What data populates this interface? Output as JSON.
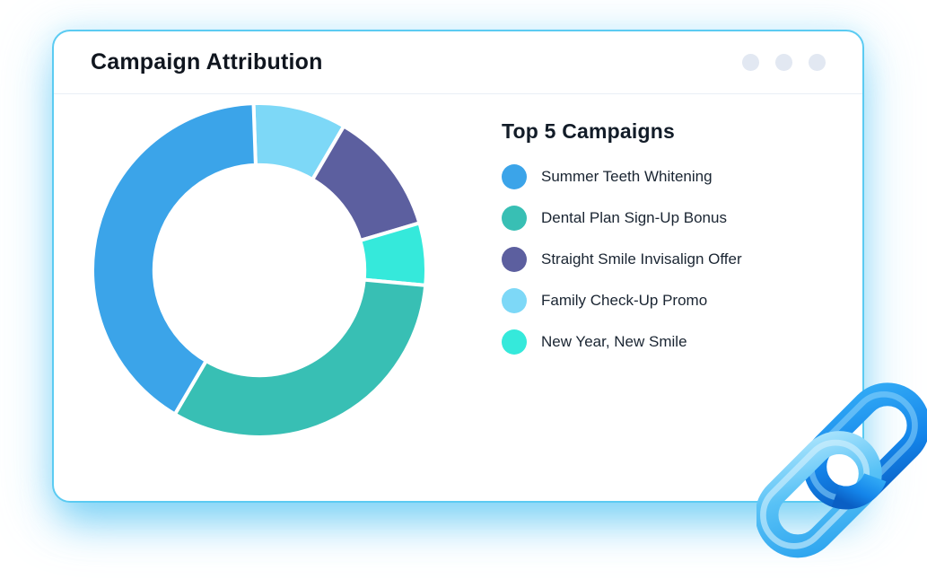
{
  "header": {
    "title": "Campaign Attribution",
    "menu_icon": "ellipsis-dots",
    "menu_dot_count": 3
  },
  "legend": {
    "title": "Top 5 Campaigns",
    "items": [
      {
        "label": "Summer Teeth Whitening",
        "color": "#3BA4E9"
      },
      {
        "label": "Dental Plan Sign-Up Bonus",
        "color": "#38BFB4"
      },
      {
        "label": "Straight Smile Invisalign Offer",
        "color": "#5C5F9F"
      },
      {
        "label": "Family Check-Up Promo",
        "color": "#7DD8F7"
      },
      {
        "label": "New Year, New Smile",
        "color": "#35E9DB"
      }
    ]
  },
  "chart_data": {
    "type": "pie",
    "variant": "donut",
    "title": "Top 5 Campaigns",
    "legend_position": "right",
    "inner_radius_ratio": 0.63,
    "start_angle_deg": -2,
    "slice_gap_color": "#ffffff",
    "slices_clockwise_from_top": [
      {
        "label": "Family Check-Up Promo",
        "percent": 9,
        "color": "#7DD8F7"
      },
      {
        "label": "Straight Smile Invisalign Offer",
        "percent": 12,
        "color": "#5C5F9F"
      },
      {
        "label": "New Year, New Smile",
        "percent": 6,
        "color": "#35E9DB"
      },
      {
        "label": "Dental Plan Sign-Up Bonus",
        "percent": 32,
        "color": "#38BFB4"
      },
      {
        "label": "Summer Teeth Whitening",
        "percent": 41,
        "color": "#3BA4E9"
      }
    ]
  },
  "theme": {
    "card_border": "#5BCBF2",
    "glow": "#8EDBF8",
    "menu_dot": "#E2E8F2",
    "text_dark": "#10161F"
  },
  "decor": {
    "chain_icon": "link-chain-3d",
    "chain_primary": "#1485EA",
    "chain_secondary": "#59C2F6"
  }
}
